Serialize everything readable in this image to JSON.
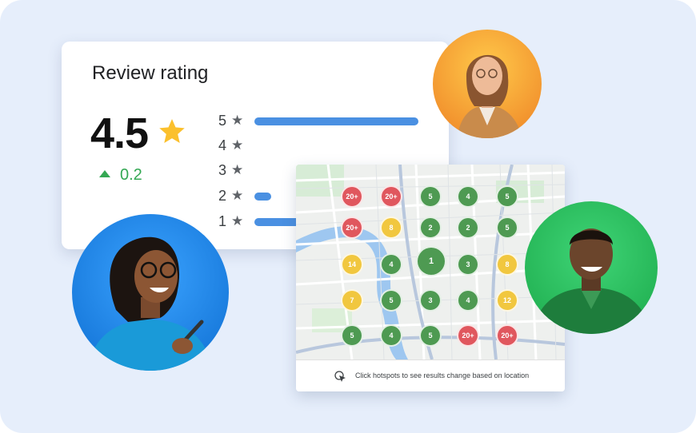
{
  "review": {
    "title": "Review rating",
    "rating": "4.5",
    "delta": "0.2",
    "rows": [
      {
        "label": "5",
        "fraction": 1.0
      },
      {
        "label": "4",
        "fraction": 0
      },
      {
        "label": "3",
        "fraction": 0
      },
      {
        "label": "2",
        "fraction": 0.1
      },
      {
        "label": "1",
        "fraction": 0.4
      }
    ],
    "accent": "#4a90e2",
    "positive_color": "#34a853",
    "star_color": "#fbc02d"
  },
  "map": {
    "footer_text": "Click hotspots to see results change based on location",
    "hotspots": [
      {
        "label": "20+",
        "color": "red"
      },
      {
        "label": "20+",
        "color": "red"
      },
      {
        "label": "5",
        "color": "green"
      },
      {
        "label": "4",
        "color": "green"
      },
      {
        "label": "5",
        "color": "green"
      },
      {
        "label": "20+",
        "color": "red"
      },
      {
        "label": "8",
        "color": "yellow"
      },
      {
        "label": "2",
        "color": "green"
      },
      {
        "label": "2",
        "color": "green"
      },
      {
        "label": "5",
        "color": "green"
      },
      {
        "label": "14",
        "color": "yellow"
      },
      {
        "label": "4",
        "color": "green"
      },
      {
        "label": "1",
        "color": "green"
      },
      {
        "label": "3",
        "color": "green"
      },
      {
        "label": "8",
        "color": "yellow"
      },
      {
        "label": "7",
        "color": "yellow"
      },
      {
        "label": "5",
        "color": "green"
      },
      {
        "label": "3",
        "color": "green"
      },
      {
        "label": "4",
        "color": "green"
      },
      {
        "label": "12",
        "color": "yellow"
      },
      {
        "label": "5",
        "color": "green"
      },
      {
        "label": "4",
        "color": "green"
      },
      {
        "label": "5",
        "color": "green"
      },
      {
        "label": "20+",
        "color": "red"
      },
      {
        "label": "20+",
        "color": "red"
      }
    ]
  },
  "avatars": [
    {
      "name": "woman-blazer-avatar",
      "color": "#f4a336"
    },
    {
      "name": "woman-glasses-avatar",
      "color": "#1e88e5"
    },
    {
      "name": "man-green-avatar",
      "color": "#2ebd59"
    }
  ]
}
